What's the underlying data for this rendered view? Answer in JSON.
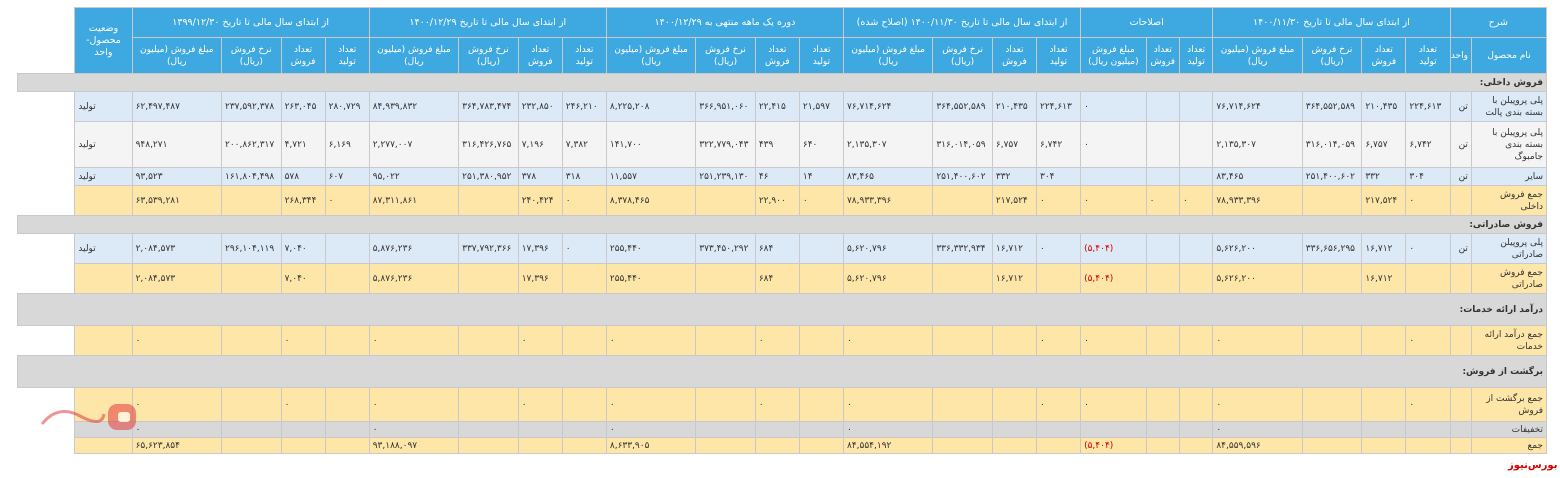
{
  "header": {
    "desc": "شرح",
    "groups": [
      "از ابتدای سال مالی تا تاریخ ۱۴۰۰/۱۱/۳۰",
      "اصلاحات",
      "از ابتدای سال مالی تا تاریخ ۱۴۰۰/۱۱/۳۰ (اصلاح شده)",
      "دوره یک ماهه منتهی به ۱۴۰۰/۱۲/۲۹",
      "از ابتدای سال مالی تا تاریخ ۱۴۰۰/۱۲/۲۹",
      "از ابتدای سال مالی تا تاریخ ۱۳۹۹/۱۲/۳۰"
    ],
    "status": "وضعیت محصول- واحد",
    "product_name": "نام محصول",
    "unit": "واحد",
    "sub": {
      "prod_qty": "تعداد تولید",
      "sale_qty": "تعداد فروش",
      "rate": "نرخ فروش (ریال)",
      "amount": "مبلغ فروش (میلیون ریال)"
    }
  },
  "rows": [
    {
      "type": "section",
      "label": "فروش داخلی:"
    },
    {
      "type": "light",
      "name": "پلی پروپیلن با بسته بندی پالت",
      "unit": "تن",
      "status": "تولید",
      "vals": [
        "۲۲۴,۶۱۳",
        "۲۱۰,۴۳۵",
        "۳۶۴,۵۵۲,۵۸۹",
        "۷۶,۷۱۴,۶۲۴",
        "",
        "",
        "۰",
        "۲۲۴,۶۱۳",
        "۲۱۰,۴۳۵",
        "۳۶۴,۵۵۲,۵۸۹",
        "۷۶,۷۱۴,۶۲۴",
        "۲۱,۵۹۷",
        "۲۲,۴۱۵",
        "۳۶۶,۹۵۱,۰۶۰",
        "۸,۲۲۵,۲۰۸",
        "۲۴۶,۲۱۰",
        "۲۳۲,۸۵۰",
        "۳۶۴,۷۸۳,۴۷۴",
        "۸۴,۹۳۹,۸۳۲",
        "۲۸۰,۷۲۹",
        "۲۶۳,۰۴۵",
        "۲۳۷,۵۹۲,۳۷۸",
        "۶۲,۴۹۷,۴۸۷"
      ]
    },
    {
      "type": "white",
      "name": "پلی پروپیلن با بسته بندی جامبوگ",
      "unit": "تن",
      "status": "تولید",
      "vals": [
        "۶,۷۴۲",
        "۶,۷۵۷",
        "۳۱۶,۰۱۴,۰۵۹",
        "۲,۱۳۵,۳۰۷",
        "",
        "",
        "۰",
        "۶,۷۴۲",
        "۶,۷۵۷",
        "۳۱۶,۰۱۴,۰۵۹",
        "۲,۱۳۵,۳۰۷",
        "۶۴۰",
        "۴۳۹",
        "۳۲۲,۷۷۹,۰۴۳",
        "۱۴۱,۷۰۰",
        "۷,۳۸۲",
        "۷,۱۹۶",
        "۳۱۶,۴۲۶,۷۶۵",
        "۲,۲۷۷,۰۰۷",
        "۶,۱۶۹",
        "۴,۷۲۱",
        "۲۰۰,۸۶۲,۳۱۷",
        "۹۴۸,۲۷۱"
      ]
    },
    {
      "type": "light",
      "name": "سایر",
      "unit": "تن",
      "status": "تولید",
      "vals": [
        "۳۰۴",
        "۳۳۲",
        "۲۵۱,۴۰۰,۶۰۲",
        "۸۳,۴۶۵",
        "",
        "",
        "",
        "۳۰۴",
        "۳۳۲",
        "۲۵۱,۴۰۰,۶۰۲",
        "۸۳,۴۶۵",
        "۱۴",
        "۴۶",
        "۲۵۱,۲۳۹,۱۳۰",
        "۱۱,۵۵۷",
        "۳۱۸",
        "۳۷۸",
        "۲۵۱,۳۸۰,۹۵۲",
        "۹۵,۰۲۲",
        "۶۰۷",
        "۵۷۸",
        "۱۶۱,۸۰۴,۴۹۸",
        "۹۳,۵۲۳"
      ]
    },
    {
      "type": "yellow",
      "name": "جمع فروش داخلی",
      "unit": "",
      "status": "",
      "vals": [
        "۰",
        "۲۱۷,۵۲۴",
        "",
        "۷۸,۹۳۳,۳۹۶",
        "۰",
        "۰",
        "۰",
        "۰",
        "۲۱۷,۵۲۴",
        "",
        "۷۸,۹۳۳,۳۹۶",
        "۰",
        "۲۲,۹۰۰",
        "",
        "۸,۳۷۸,۴۶۵",
        "۰",
        "۲۴۰,۴۲۴",
        "",
        "۸۷,۳۱۱,۸۶۱",
        "۰",
        "۲۶۸,۳۴۴",
        "",
        "۶۳,۵۳۹,۲۸۱"
      ]
    },
    {
      "type": "section",
      "label": "فروش صادراتی:"
    },
    {
      "type": "light",
      "name": "پلی پروپیلن صادراتی",
      "unit": "تن",
      "status": "تولید",
      "vals": [
        "۰",
        "۱۶,۷۱۲",
        "۳۳۶,۶۵۶,۲۹۵",
        "۵,۶۲۶,۲۰۰",
        "",
        "",
        "(۵,۴۰۴)",
        "۰",
        "۱۶,۷۱۲",
        "۳۳۶,۳۳۲,۹۳۴",
        "۵,۶۲۰,۷۹۶",
        "",
        "۶۸۴",
        "۳۷۳,۴۵۰,۲۹۲",
        "۲۵۵,۴۴۰",
        "۰",
        "۱۷,۳۹۶",
        "۳۳۷,۷۹۲,۳۶۶",
        "۵,۸۷۶,۲۳۶",
        "",
        "۷,۰۴۰",
        "۲۹۶,۱۰۴,۱۱۹",
        "۲,۰۸۴,۵۷۳"
      ]
    },
    {
      "type": "yellow",
      "name": "جمع فروش صادراتی",
      "unit": "",
      "status": "",
      "vals": [
        "",
        "۱۶,۷۱۲",
        "",
        "۵,۶۲۶,۲۰۰",
        "",
        "",
        "(۵,۴۰۴)",
        "",
        "۱۶,۷۱۲",
        "",
        "۵,۶۲۰,۷۹۶",
        "",
        "۶۸۴",
        "",
        "۲۵۵,۴۴۰",
        "",
        "۱۷,۳۹۶",
        "",
        "۵,۸۷۶,۲۳۶",
        "",
        "۷,۰۴۰",
        "",
        "۲,۰۸۴,۵۷۳"
      ]
    },
    {
      "type": "section",
      "label": "درآمد ارائه خدمات:"
    },
    {
      "type": "yellow",
      "name": "جمع درآمد ارائه خدمات",
      "unit": "",
      "status": "",
      "vals": [
        "۰",
        "",
        "",
        "۰",
        "",
        "",
        "۰",
        "۰",
        "",
        "",
        "۰",
        "",
        "۰",
        "",
        "۰",
        "",
        "۰",
        "",
        "۰",
        "",
        "۰",
        "",
        "۰"
      ]
    },
    {
      "type": "section",
      "label": "برگشت از فروش:"
    },
    {
      "type": "yellow",
      "name": "جمع برگشت از فروش",
      "unit": "",
      "status": "",
      "vals": [
        "۰",
        "",
        "",
        "۰",
        "",
        "",
        "۰",
        "۰",
        "",
        "",
        "۰",
        "",
        "۰",
        "",
        "۰",
        "",
        "۰",
        "",
        "۰",
        "",
        "۰",
        "",
        "۰"
      ]
    },
    {
      "type": "gray",
      "name": "تخفیفات",
      "unit": "",
      "status": "",
      "vals": [
        "",
        "",
        "",
        "۰",
        "",
        "",
        "",
        "",
        "",
        "",
        "۰",
        "",
        "",
        "",
        "۰",
        "",
        "",
        "",
        "۰",
        "",
        "",
        "",
        "۰"
      ]
    },
    {
      "type": "yellow",
      "name": "جمع",
      "unit": "",
      "status": "",
      "vals": [
        "",
        "",
        "",
        "۸۴,۵۵۹,۵۹۶",
        "",
        "",
        "(۵,۴۰۴)",
        "",
        "",
        "",
        "۸۴,۵۵۴,۱۹۲",
        "",
        "",
        "",
        "۸,۶۳۳,۹۰۵",
        "",
        "",
        "",
        "۹۳,۱۸۸,۰۹۷",
        "",
        "",
        "",
        "۶۵,۶۲۳,۸۵۴"
      ]
    }
  ],
  "brand": {
    "footer": "بورس‌نیوز",
    "logo_text": "بورس نیوز",
    "color": "#d60000"
  },
  "colors": {
    "header": "#3ea8e0",
    "light": "#dce9f7",
    "yellow": "#fde6a8",
    "gray": "#d8d8d8"
  }
}
